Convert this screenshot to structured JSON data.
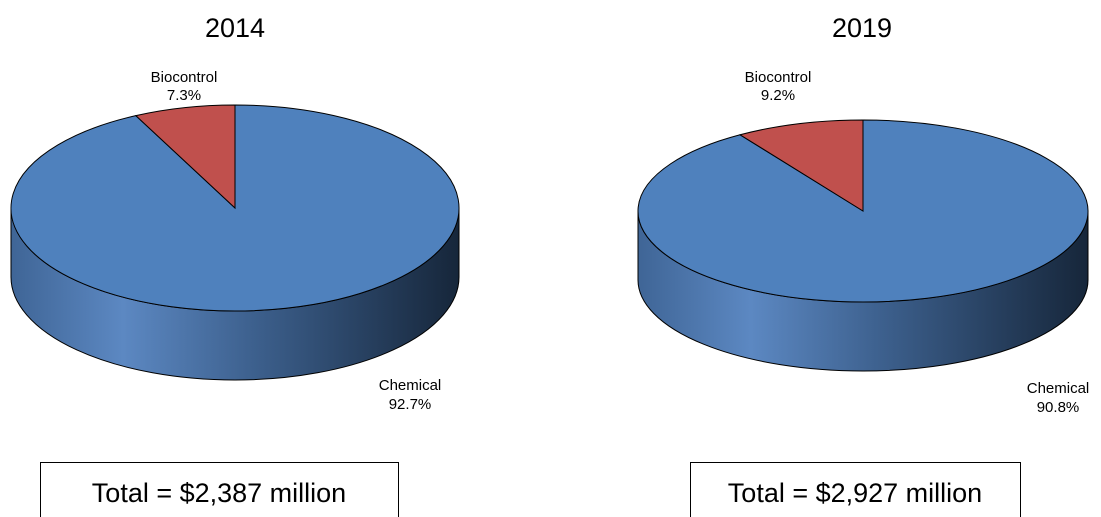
{
  "colors": {
    "chemical_top": "#4f81bd",
    "chemical_side_light": "#5a8ac8",
    "chemical_side_dark": "#1f3550",
    "biocontrol_top": "#c0504d",
    "biocontrol_side": "#7f2a28",
    "outline": "#000000"
  },
  "chart_data": [
    {
      "type": "pie",
      "title": "2014",
      "slices": [
        {
          "label": "Biocontrol",
          "percent_label": "7.3%",
          "value": 7.3
        },
        {
          "label": "Chemical",
          "percent_label": "92.7%",
          "value": 92.7
        }
      ],
      "total_label": "Total = $2,387 million"
    },
    {
      "type": "pie",
      "title": "2019",
      "slices": [
        {
          "label": "Biocontrol",
          "percent_label": "9.2%",
          "value": 9.2
        },
        {
          "label": "Chemical",
          "percent_label": "90.8%",
          "value": 90.8
        }
      ],
      "total_label": "Total = $2,927 million"
    }
  ]
}
